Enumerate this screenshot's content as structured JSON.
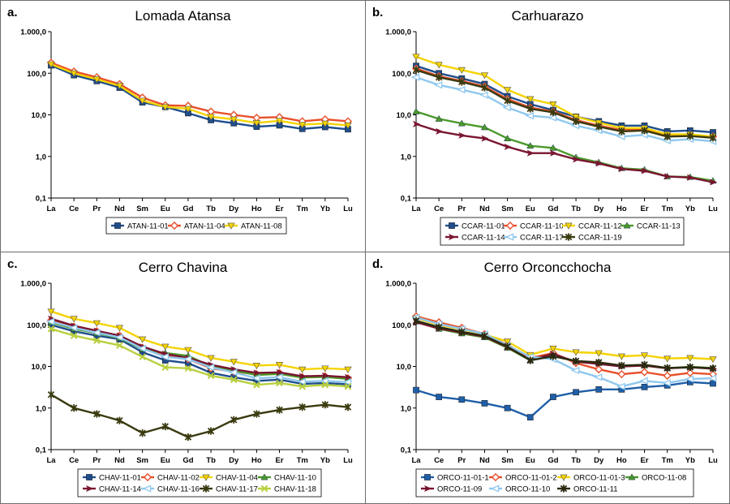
{
  "elements": [
    "La",
    "Ce",
    "Pr",
    "Nd",
    "Sm",
    "Eu",
    "Gd",
    "Tb",
    "Dy",
    "Ho",
    "Er",
    "Tm",
    "Yb",
    "Lu"
  ],
  "y_ticks": [
    "1.000,0",
    "100,0",
    "10,0",
    "1,0",
    "0,1"
  ],
  "chart_data": [
    {
      "type": "line",
      "letter": "a.",
      "title": "Lomada Atansa",
      "yscale": "log",
      "ylim": [
        0.1,
        1000
      ],
      "grid": false,
      "legend": "bottom",
      "series": [
        {
          "name": "ATAN-11-01",
          "color": "#1f4e8c",
          "marker": "square",
          "values": [
            155,
            90,
            65,
            45,
            20,
            15.5,
            11,
            7.5,
            6.3,
            5.2,
            5.6,
            4.6,
            5.1,
            4.5
          ]
        },
        {
          "name": "ATAN-11-04",
          "color": "#e8502a",
          "marker": "diamond",
          "values": [
            180,
            110,
            80,
            55,
            26,
            17,
            16.5,
            12,
            10,
            8.5,
            8.8,
            7,
            7.8,
            7
          ]
        },
        {
          "name": "ATAN-11-08",
          "color": "#f5d300",
          "marker": "triangle-down",
          "values": [
            165,
            100,
            72,
            50,
            22,
            15.5,
            14,
            9,
            7.8,
            6.4,
            7.2,
            5.8,
            6.2,
            5.6
          ]
        }
      ]
    },
    {
      "type": "line",
      "letter": "b.",
      "title": "Carhuarazo",
      "yscale": "log",
      "ylim": [
        0.1,
        1000
      ],
      "grid": false,
      "legend": "bottom",
      "series": [
        {
          "name": "CCAR-11-01",
          "color": "#1f4e8c",
          "marker": "square",
          "values": [
            150,
            100,
            75,
            55,
            28,
            18,
            13,
            9,
            7,
            5.5,
            5.5,
            4,
            4.2,
            3.8
          ]
        },
        {
          "name": "CCAR-11-10",
          "color": "#e8502a",
          "marker": "diamond",
          "values": [
            130,
            85,
            65,
            48,
            24,
            15,
            12,
            7.5,
            5.5,
            4.3,
            4.5,
            3.2,
            3.3,
            3
          ]
        },
        {
          "name": "CCAR-11-12",
          "color": "#f5d300",
          "marker": "triangle-down",
          "values": [
            250,
            160,
            120,
            90,
            40,
            24,
            18,
            9,
            6.5,
            4.8,
            4.8,
            3.4,
            3.4,
            3
          ]
        },
        {
          "name": "CCAR-11-13",
          "color": "#4a9a2a",
          "marker": "triangle-up",
          "values": [
            12,
            8,
            6.2,
            5,
            2.7,
            1.8,
            1.6,
            0.95,
            0.72,
            0.52,
            0.48,
            0.33,
            0.32,
            0.26
          ]
        },
        {
          "name": "CCAR-11-14",
          "color": "#7a1530",
          "marker": "arrow",
          "values": [
            6,
            4,
            3.2,
            2.7,
            1.7,
            1.2,
            1.2,
            0.85,
            0.68,
            0.5,
            0.45,
            0.33,
            0.31,
            0.24
          ]
        },
        {
          "name": "CCAR-11-17",
          "color": "#8fc8ee",
          "marker": "triangle-left",
          "values": [
            80,
            52,
            40,
            30,
            15,
            9.5,
            8.5,
            5.5,
            4.2,
            3,
            3.3,
            2.4,
            2.6,
            2.3
          ]
        },
        {
          "name": "CCAR-11-19",
          "color": "#3a3a10",
          "marker": "star",
          "values": [
            120,
            80,
            62,
            45,
            22,
            14,
            11.5,
            7,
            5.2,
            4,
            4.2,
            3,
            3.1,
            2.8
          ]
        }
      ]
    },
    {
      "type": "line",
      "letter": "c.",
      "title": "Cerro Chavina",
      "yscale": "log",
      "ylim": [
        0.1,
        1000
      ],
      "grid": false,
      "legend": "bottom",
      "series": [
        {
          "name": "CHAV-11-01",
          "color": "#1f4e8c",
          "marker": "square",
          "values": [
            100,
            70,
            55,
            45,
            22,
            14,
            12,
            7,
            5.5,
            4.5,
            4.8,
            3.8,
            4,
            3.7
          ]
        },
        {
          "name": "CHAV-11-02",
          "color": "#e8502a",
          "marker": "diamond",
          "values": [
            130,
            90,
            70,
            55,
            28,
            18,
            15,
            9,
            7.5,
            6.5,
            7,
            5.5,
            5.8,
            5.2
          ]
        },
        {
          "name": "CHAV-11-04",
          "color": "#f5d300",
          "marker": "triangle-down",
          "values": [
            210,
            140,
            110,
            85,
            45,
            30,
            25,
            16,
            13,
            10.5,
            11,
            8.5,
            9,
            8.5
          ]
        },
        {
          "name": "CHAV-11-10",
          "color": "#4a9a2a",
          "marker": "triangle-up",
          "values": [
            115,
            80,
            63,
            48,
            26,
            21,
            18,
            10,
            8,
            6.2,
            6.6,
            5.4,
            5.6,
            5
          ]
        },
        {
          "name": "CHAV-11-14",
          "color": "#7a1530",
          "marker": "arrow",
          "values": [
            140,
            95,
            72,
            55,
            30,
            20,
            16,
            11,
            8.5,
            7,
            7.2,
            5.8,
            6,
            5.5
          ]
        },
        {
          "name": "CHAV-11-16",
          "color": "#8fc8ee",
          "marker": "triangle-left",
          "values": [
            120,
            85,
            65,
            50,
            27,
            17,
            15,
            9.5,
            7.2,
            5.2,
            5.5,
            4.3,
            4.5,
            4.2
          ]
        },
        {
          "name": "CHAV-11-17",
          "color": "#3a3a10",
          "marker": "star",
          "values": [
            2.1,
            1,
            0.72,
            0.5,
            0.25,
            0.36,
            0.2,
            0.28,
            0.52,
            0.72,
            0.9,
            1.05,
            1.2,
            1.05
          ]
        },
        {
          "name": "CHAV-11-18",
          "color": "#b8d040",
          "marker": "x",
          "values": [
            80,
            55,
            42,
            32,
            17,
            9.5,
            9,
            6,
            4.8,
            3.6,
            4,
            3.3,
            3.6,
            3.3
          ]
        }
      ]
    },
    {
      "type": "line",
      "letter": "d.",
      "title": "Cerro Orconcchocha",
      "yscale": "log",
      "ylim": [
        0.1,
        1000
      ],
      "grid": false,
      "legend": "bottom",
      "series": [
        {
          "name": "ORCO-11-01-1",
          "color": "#1f5fa8",
          "marker": "square",
          "values": [
            2.7,
            1.85,
            1.6,
            1.3,
            1,
            0.6,
            1.85,
            2.4,
            2.8,
            2.8,
            3.2,
            3.5,
            4.2,
            3.9
          ]
        },
        {
          "name": "ORCO-11-01-2",
          "color": "#e8502a",
          "marker": "diamond",
          "values": [
            160,
            115,
            85,
            60,
            33,
            16,
            21,
            12,
            8.5,
            6.5,
            7.3,
            6,
            7,
            6.5
          ]
        },
        {
          "name": "ORCO-11-01-3",
          "color": "#f5d300",
          "marker": "triangle-down",
          "values": [
            145,
            100,
            78,
            58,
            40,
            19,
            27,
            22,
            21,
            17.5,
            18.5,
            15.5,
            16,
            15
          ]
        },
        {
          "name": "ORCO-11-08",
          "color": "#4a9a2a",
          "marker": "triangle-up",
          "values": [
            120,
            80,
            62,
            50,
            28,
            14,
            18,
            13.5,
            12,
            10.3,
            10.5,
            9,
            9.8,
            9.2
          ]
        },
        {
          "name": "ORCO-11-09",
          "color": "#7a1530",
          "marker": "arrow",
          "values": [
            115,
            82,
            65,
            52,
            29,
            14.5,
            20,
            13,
            11.5,
            10,
            10.5,
            9,
            9.5,
            8.8
          ]
        },
        {
          "name": "ORCO-11-10",
          "color": "#8fc8ee",
          "marker": "triangle-left",
          "values": [
            150,
            105,
            80,
            60,
            32,
            17,
            15,
            8,
            5.5,
            3.3,
            4.5,
            4,
            5,
            5.2
          ]
        },
        {
          "name": "ORCO-11-11",
          "color": "#2a2a10",
          "marker": "star",
          "values": [
            125,
            88,
            68,
            54,
            30,
            14,
            17.5,
            13.5,
            12.5,
            10.5,
            11,
            9.2,
            9.6,
            9
          ]
        }
      ]
    }
  ]
}
